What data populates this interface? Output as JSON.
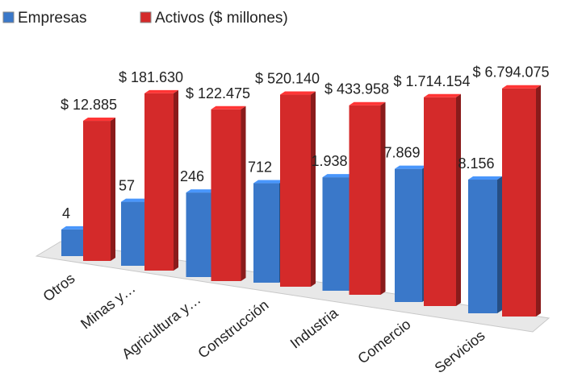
{
  "chart_data": {
    "type": "bar",
    "categories": [
      "Otros",
      "Minas y…",
      "Agricultura y…",
      "Construcción",
      "Industria",
      "Comercio",
      "Servicios"
    ],
    "series": [
      {
        "name": "Empresas",
        "color": "#3a78c9",
        "values": [
          4,
          57,
          246,
          712,
          1938,
          7869,
          8156
        ],
        "value_labels": [
          "4",
          "57",
          "246",
          "712",
          "1.938",
          "7.869",
          "8.156"
        ]
      },
      {
        "name": "Activos ($ millones)",
        "color": "#d42a2a",
        "values": [
          12885,
          181630,
          122475,
          520140,
          433958,
          1714154,
          6794075
        ],
        "value_labels": [
          "$ 12.885",
          "$ 181.630",
          "$ 122.475",
          "$ 520.140",
          "$ 433.958",
          "$ 1.714.154",
          "$ 6.794.075"
        ]
      }
    ],
    "ylim": [
      0.6,
      10000000
    ],
    "log_scale": true,
    "legend": "top-left"
  }
}
